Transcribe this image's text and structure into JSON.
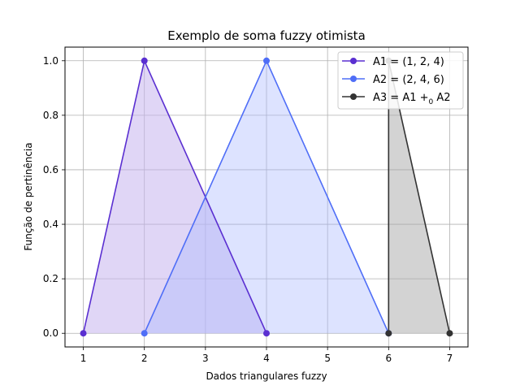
{
  "chart_data": {
    "type": "line",
    "title": "Exemplo de soma fuzzy otimista",
    "xlabel": "Dados triangulares fuzzy",
    "ylabel": "Função de pertinência",
    "xlim": [
      0.7,
      7.3
    ],
    "ylim": [
      -0.05,
      1.05
    ],
    "xticks": [
      1,
      2,
      3,
      4,
      5,
      6,
      7
    ],
    "yticks": [
      0.0,
      0.2,
      0.4,
      0.6,
      0.8,
      1.0
    ],
    "xtick_labels": [
      "1",
      "2",
      "3",
      "4",
      "5",
      "6",
      "7"
    ],
    "ytick_labels": [
      "0.0",
      "0.2",
      "0.4",
      "0.6",
      "0.8",
      "1.0"
    ],
    "grid": true,
    "legend_position": "top-right",
    "series": [
      {
        "name": "A1 = (1, 2, 4)",
        "x": [
          1,
          2,
          4
        ],
        "y": [
          0,
          1,
          0
        ],
        "color": "#5a2fd1",
        "fill": "#c7b5ee",
        "fill_opacity": 0.55
      },
      {
        "name": "A2 = (2, 4, 6)",
        "x": [
          2,
          4,
          6
        ],
        "y": [
          0,
          1,
          0
        ],
        "color": "#4f6ef7",
        "fill": "#aab8ff",
        "fill_opacity": 0.4
      },
      {
        "name_main": "A3 = A1 +",
        "name_sub": "0",
        "name_tail": " A2",
        "x": [
          6,
          6,
          7
        ],
        "y": [
          0,
          1,
          0
        ],
        "color": "#333333",
        "fill": "#a8a8a8",
        "fill_opacity": 0.5
      }
    ]
  }
}
